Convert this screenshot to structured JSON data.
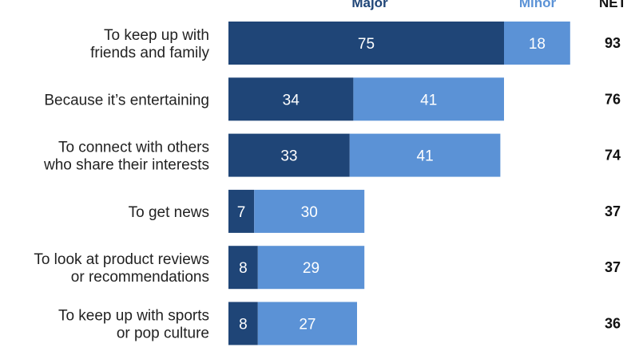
{
  "chart_data": {
    "type": "bar",
    "orientation": "horizontal",
    "stacked": true,
    "categories": [
      "To keep up with\nfriends and family",
      "Because it’s entertaining",
      "To connect with others\nwho share their interests",
      "To get news",
      "To look at product reviews\nor recommendations",
      "To keep up with sports\nor pop culture"
    ],
    "series": [
      {
        "name": "Major",
        "color": "#1f4577",
        "values": [
          75,
          34,
          33,
          7,
          8,
          8
        ]
      },
      {
        "name": "Minor",
        "color": "#5b92d6",
        "values": [
          18,
          41,
          41,
          30,
          29,
          27
        ]
      }
    ],
    "net_label": "NET",
    "net": [
      93,
      76,
      74,
      37,
      37,
      36
    ],
    "legend": [
      "Major",
      "Minor",
      "NET"
    ],
    "legend_position": "top",
    "xlim": [
      0,
      93
    ],
    "grid": false
  }
}
